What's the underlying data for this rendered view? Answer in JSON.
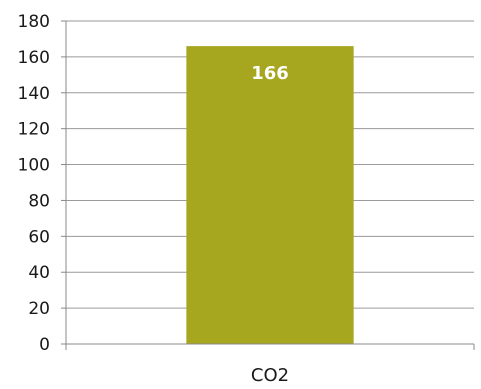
{
  "chart_data": {
    "type": "bar",
    "categories": [
      "CO2"
    ],
    "values": [
      166
    ],
    "data_labels": [
      "166"
    ],
    "ylim": [
      0,
      180
    ],
    "yticks": [
      0,
      20,
      40,
      60,
      80,
      100,
      120,
      140,
      160,
      180
    ],
    "title": "",
    "xlabel": "",
    "ylabel": "",
    "grid": true,
    "legend": "none",
    "colors": {
      "bar": "#a7a61f",
      "grid": "#9a9a9a",
      "axis": "#888888",
      "tick_text": "#1a1a1a",
      "data_label": "#ffffff"
    }
  }
}
